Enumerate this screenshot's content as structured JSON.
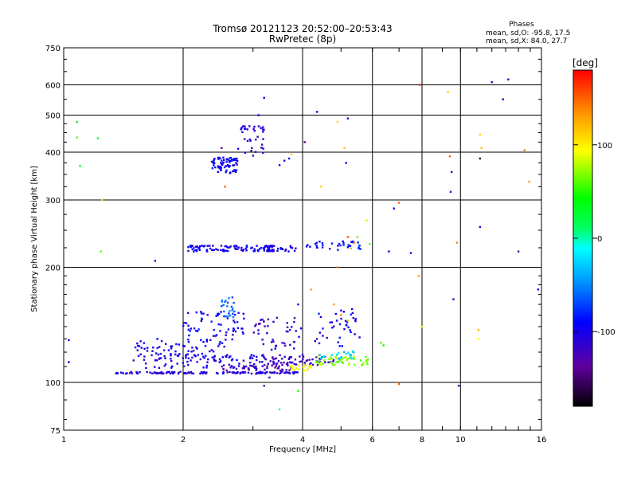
{
  "chart_data": {
    "type": "scatter",
    "title": "Tromsø 20121123 20:52:00–20:53:43",
    "subtitle": "RwPretec (8p)",
    "xlabel": "Frequency [MHz]",
    "ylabel": "Stationary phase Virtual Height [km]",
    "x_scale": "log",
    "y_scale": "log",
    "xlim": [
      1,
      16
    ],
    "ylim": [
      75,
      750
    ],
    "x_ticks": [
      "1",
      "2",
      "4",
      "6",
      "8",
      "10",
      "16"
    ],
    "x_ticks_val": [
      1,
      2,
      4,
      6,
      8,
      10,
      16
    ],
    "x_grid": [
      2,
      4,
      6,
      8,
      10
    ],
    "y_ticks": [
      "75",
      "100",
      "200",
      "300",
      "400",
      "500",
      "600",
      "750"
    ],
    "y_ticks_val": [
      75,
      100,
      200,
      300,
      400,
      500,
      600,
      750
    ],
    "y_grid": [
      100,
      200,
      300,
      400,
      500,
      600
    ],
    "grid": true,
    "stats_title": "Phases",
    "stats": [
      "mean, sd,O:  -95.8, 17.5",
      "mean, sd,X:  84.0, 27.7"
    ],
    "colorbar": {
      "label": "[deg]",
      "min": -180,
      "max": 180,
      "ticks": [
        "100",
        "0",
        "-100"
      ],
      "ticks_val": [
        100,
        0,
        -100
      ]
    },
    "clusters": [
      {
        "x0": 1.35,
        "x1": 3.9,
        "y": 106,
        "spread": 0.6,
        "n": 140,
        "phase": -110
      },
      {
        "x0": 2.5,
        "x1": 3.8,
        "y": 109,
        "spread": 2,
        "n": 40,
        "phase": -125
      },
      {
        "x0": 1.6,
        "x1": 3.2,
        "y": 114,
        "spread": 5,
        "n": 80,
        "phase": -105
      },
      {
        "x0": 1.5,
        "x1": 2.6,
        "y": 122,
        "spread": 8,
        "n": 70,
        "phase": -100
      },
      {
        "x0": 2.0,
        "x1": 2.9,
        "y": 140,
        "spread": 14,
        "n": 60,
        "phase": -95
      },
      {
        "x0": 2.5,
        "x1": 2.7,
        "y": 158,
        "spread": 10,
        "n": 25,
        "phase": -60
      },
      {
        "x0": 3.0,
        "x1": 4.0,
        "y": 130,
        "spread": 18,
        "n": 55,
        "phase": -115
      },
      {
        "x0": 3.2,
        "x1": 4.8,
        "y": 114,
        "spread": 3,
        "n": 60,
        "phase": -120
      },
      {
        "x0": 3.7,
        "x1": 4.2,
        "y": 109,
        "spread": 2,
        "n": 20,
        "phase": 95
      },
      {
        "x0": 4.3,
        "x1": 5.9,
        "y": 114,
        "spread": 3,
        "n": 55,
        "phase": 70
      },
      {
        "x0": 4.4,
        "x1": 5.5,
        "y": 118,
        "spread": 3,
        "n": 20,
        "phase": -30
      },
      {
        "x0": 4.3,
        "x1": 5.6,
        "y": 140,
        "spread": 16,
        "n": 40,
        "phase": -95
      },
      {
        "x0": 2.05,
        "x1": 3.85,
        "y": 224,
        "spread": 4,
        "n": 120,
        "phase": -100
      },
      {
        "x0": 4.0,
        "x1": 5.6,
        "y": 228,
        "spread": 6,
        "n": 35,
        "phase": -90
      },
      {
        "x0": 2.35,
        "x1": 2.75,
        "y": 370,
        "spread": 18,
        "n": 70,
        "phase": -95
      },
      {
        "x0": 2.75,
        "x1": 3.2,
        "y": 430,
        "spread": 40,
        "n": 35,
        "phase": -105
      }
    ],
    "scatter_points": [
      [
        1.03,
        129,
        -85
      ],
      [
        1.03,
        113,
        -90
      ],
      [
        1.08,
        480,
        40
      ],
      [
        1.08,
        437,
        60
      ],
      [
        1.1,
        368,
        30
      ],
      [
        1.22,
        435,
        20
      ],
      [
        1.25,
        300,
        80
      ],
      [
        1.24,
        220,
        60
      ],
      [
        1.7,
        208,
        -120
      ],
      [
        3.2,
        98,
        -130
      ],
      [
        3.3,
        103,
        -120
      ],
      [
        3.5,
        85,
        0
      ],
      [
        3.9,
        95,
        50
      ],
      [
        4.35,
        510,
        -110
      ],
      [
        4.45,
        325,
        110
      ],
      [
        4.05,
        425,
        -140
      ],
      [
        4.9,
        480,
        110
      ],
      [
        5.2,
        490,
        -100
      ],
      [
        5.1,
        410,
        120
      ],
      [
        5.15,
        375,
        -110
      ],
      [
        5.2,
        240,
        150
      ],
      [
        5.4,
        232,
        140
      ],
      [
        5.5,
        240,
        60
      ],
      [
        5.3,
        224,
        120
      ],
      [
        4.9,
        200,
        140
      ],
      [
        5.8,
        265,
        80
      ],
      [
        5.9,
        230,
        60
      ],
      [
        6.6,
        220,
        -100
      ],
      [
        6.8,
        285,
        -120
      ],
      [
        7.0,
        295,
        150
      ],
      [
        7.0,
        99,
        150
      ],
      [
        6.3,
        127,
        60
      ],
      [
        6.4,
        125,
        40
      ],
      [
        7.5,
        218,
        -100
      ],
      [
        7.9,
        600,
        170
      ],
      [
        7.85,
        190,
        130
      ],
      [
        8.0,
        140,
        100
      ],
      [
        9.3,
        575,
        110
      ],
      [
        9.4,
        390,
        150
      ],
      [
        9.5,
        355,
        -110
      ],
      [
        9.45,
        315,
        -120
      ],
      [
        9.6,
        165,
        -120
      ],
      [
        9.8,
        232,
        140
      ],
      [
        9.9,
        98,
        -130
      ],
      [
        11.2,
        445,
        110
      ],
      [
        11.3,
        410,
        120
      ],
      [
        11.2,
        385,
        -160
      ],
      [
        11.2,
        255,
        -110
      ],
      [
        11.1,
        137,
        120
      ],
      [
        11.1,
        130,
        100
      ],
      [
        12.0,
        610,
        -110
      ],
      [
        12.8,
        550,
        -100
      ],
      [
        13.2,
        620,
        -110
      ],
      [
        14.0,
        220,
        -120
      ],
      [
        14.5,
        405,
        140
      ],
      [
        14.9,
        335,
        130
      ],
      [
        15.7,
        175,
        -110
      ],
      [
        3.5,
        370,
        -110
      ],
      [
        3.6,
        380,
        -100
      ],
      [
        3.7,
        385,
        -90
      ],
      [
        3.75,
        395,
        110
      ],
      [
        3.2,
        555,
        -110
      ],
      [
        3.1,
        500,
        -90
      ],
      [
        2.55,
        325,
        150
      ],
      [
        2.5,
        410,
        -140
      ],
      [
        5.0,
        150,
        140
      ],
      [
        4.8,
        160,
        130
      ],
      [
        5.2,
        145,
        120
      ],
      [
        3.9,
        160,
        -100
      ],
      [
        4.2,
        175,
        130
      ]
    ]
  }
}
